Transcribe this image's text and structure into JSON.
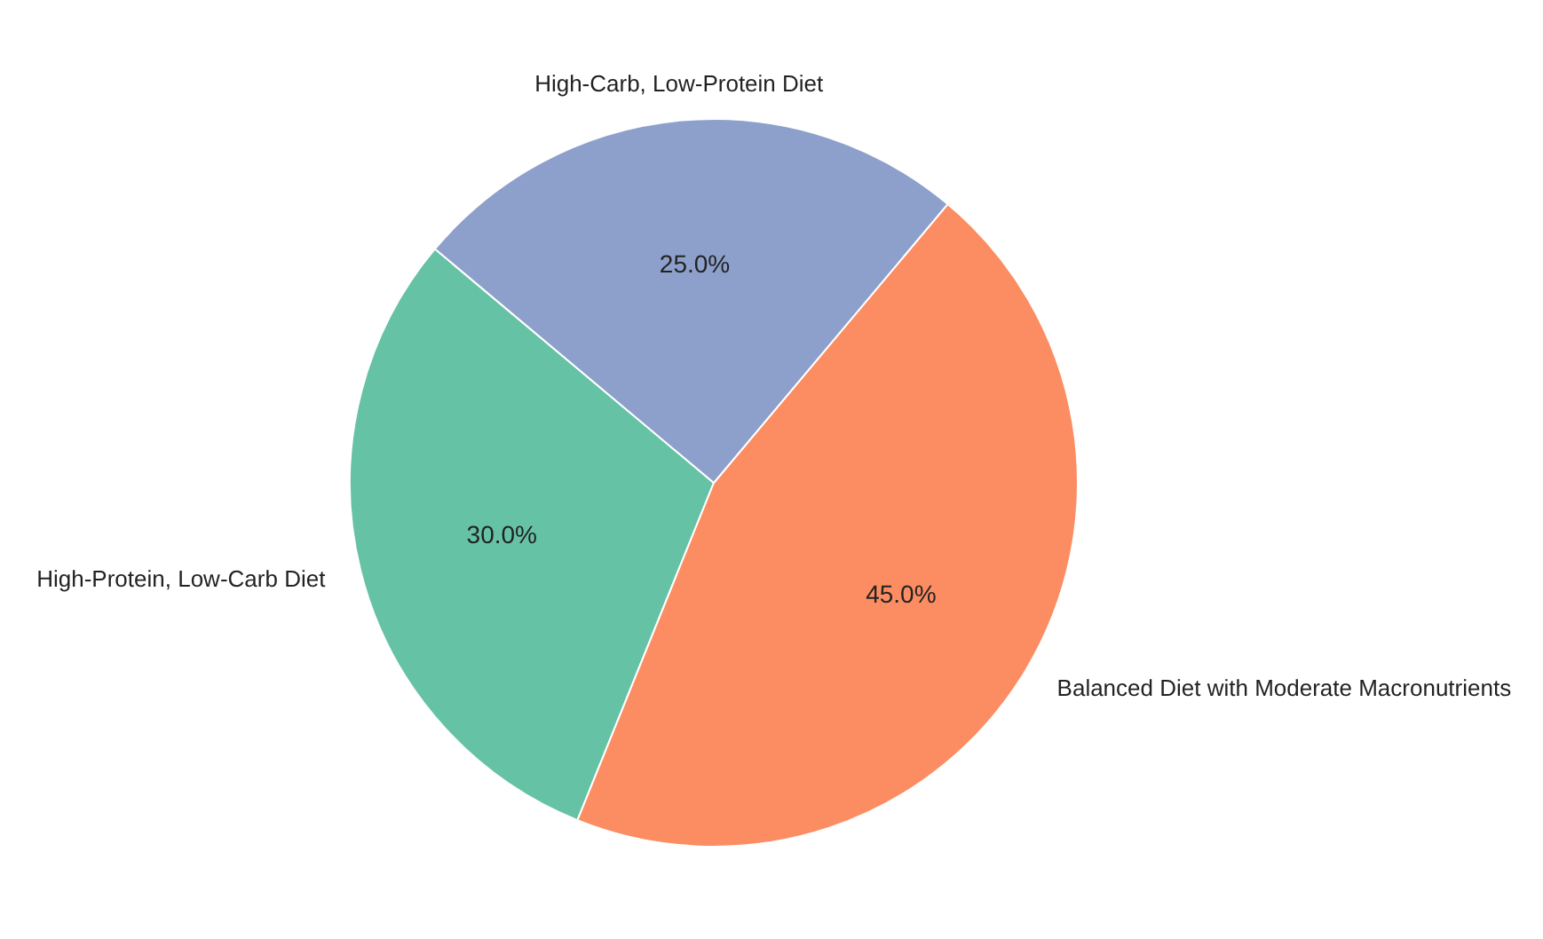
{
  "chart_data": {
    "type": "pie",
    "categories": [
      "High-Protein, Low-Carb Diet",
      "Balanced Diet with Moderate Macronutrients",
      "High-Carb, Low-Protein Diet"
    ],
    "values": [
      30,
      45,
      25
    ],
    "colors": [
      "#66c2a5",
      "#fc8d62",
      "#8da0cb"
    ],
    "value_labels": [
      "30.0%",
      "45.0%",
      "25.0%"
    ]
  }
}
